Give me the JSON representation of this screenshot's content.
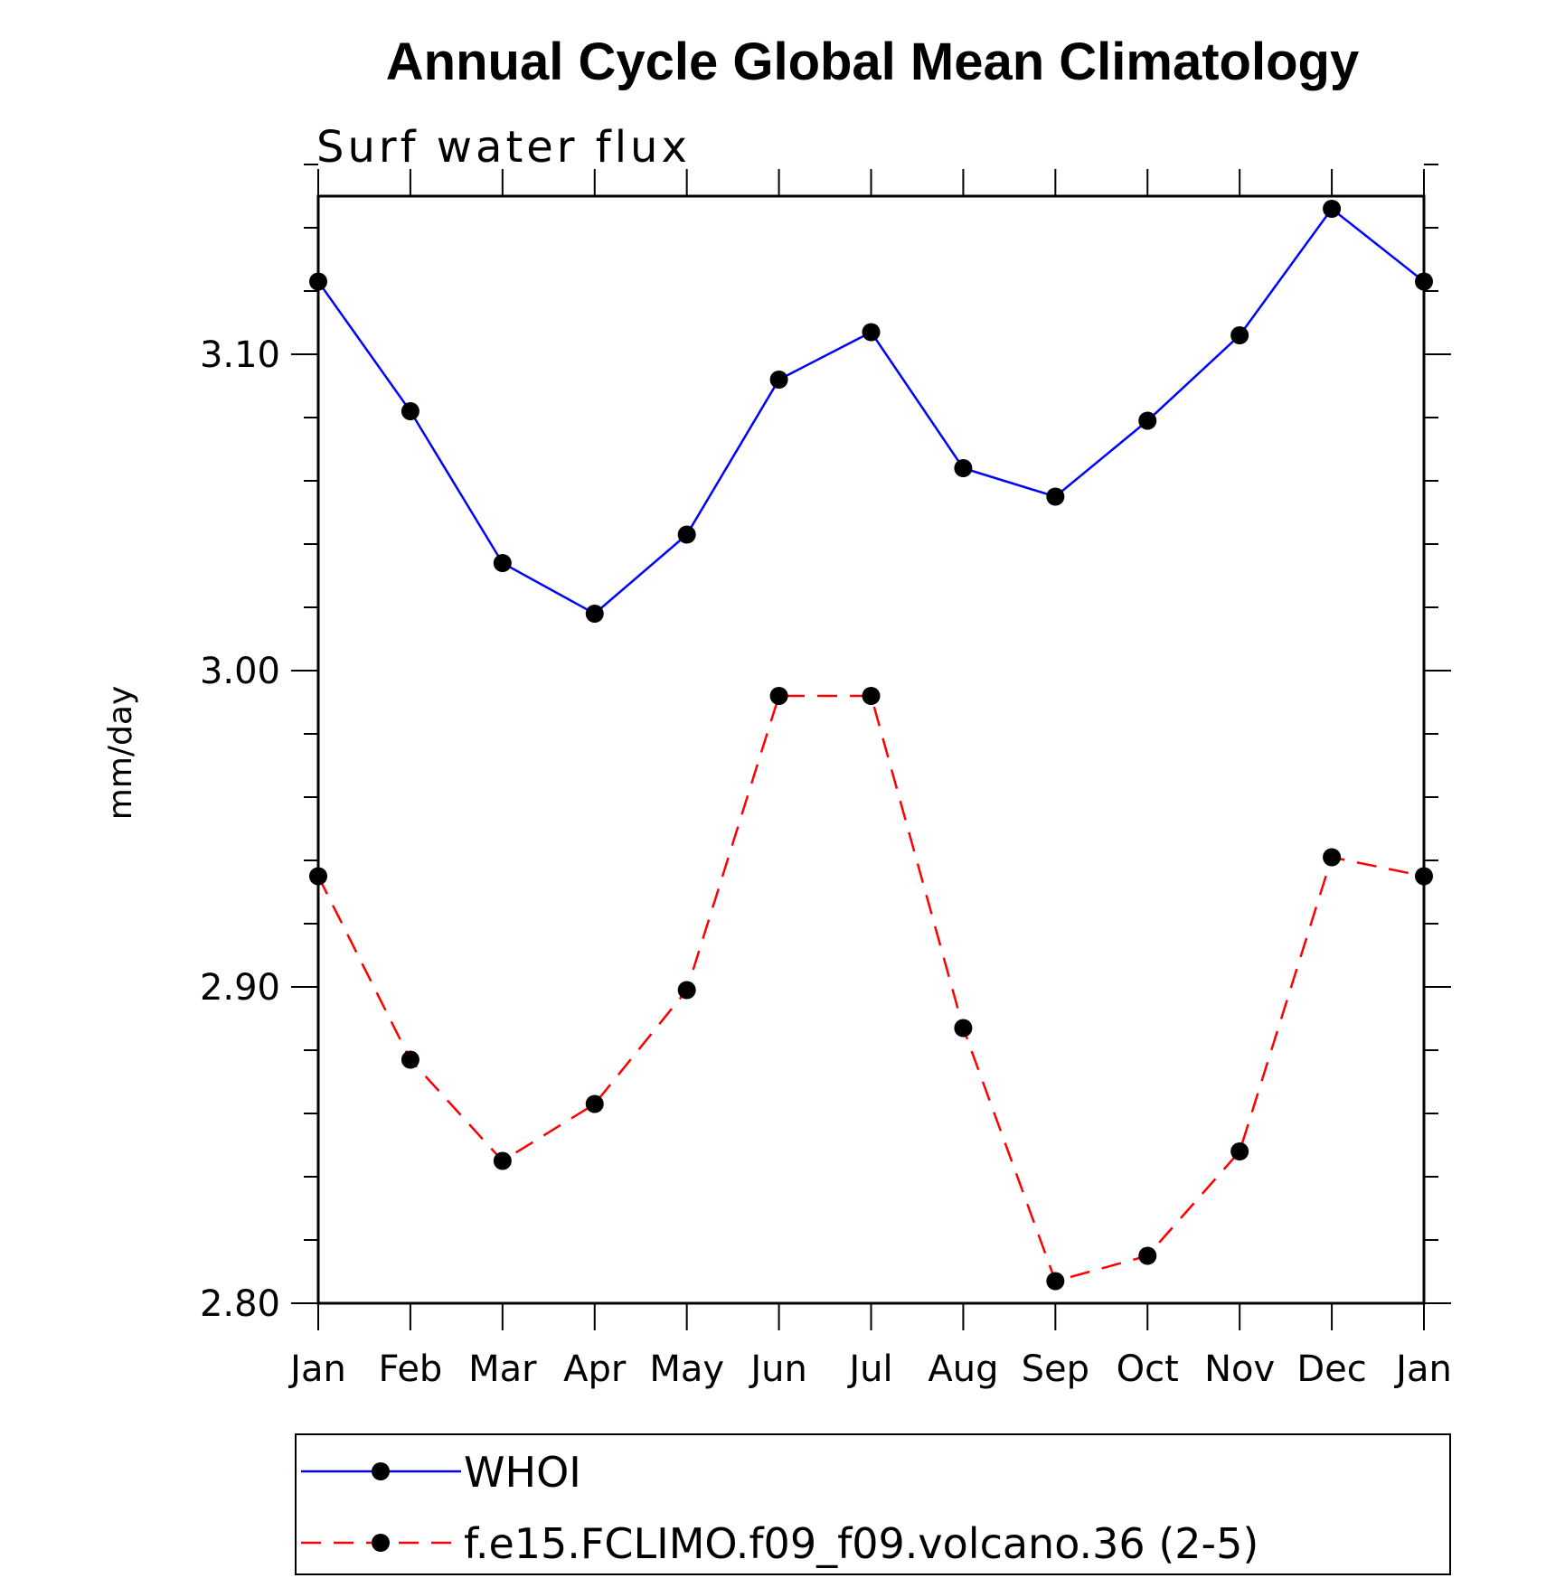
{
  "chart_data": {
    "type": "line",
    "title": "Annual Cycle Global Mean Climatology",
    "subtitle": "Surf water flux",
    "xlabel": "",
    "ylabel": "mm/day",
    "categories": [
      "Jan",
      "Feb",
      "Mar",
      "Apr",
      "May",
      "Jun",
      "Jul",
      "Aug",
      "Sep",
      "Oct",
      "Nov",
      "Dec",
      "Jan"
    ],
    "ylim": [
      2.8,
      3.15
    ],
    "yticks": [
      2.8,
      2.9,
      3.0,
      3.1
    ],
    "ytick_labels": [
      "2.80",
      "2.90",
      "3.00",
      "3.10"
    ],
    "grid": false,
    "legend_position": "bottom",
    "series": [
      {
        "name": "WHOI",
        "color": "#0000ff",
        "line_style": "solid",
        "marker": "filled-circle",
        "values": [
          3.123,
          3.082,
          3.034,
          3.018,
          3.043,
          3.092,
          3.107,
          3.064,
          3.055,
          3.079,
          3.106,
          3.146,
          3.123
        ]
      },
      {
        "name": "f.e15.FCLIMO.f09_f09.volcano.36 (2-5)",
        "color": "#ff0000",
        "line_style": "dashed",
        "marker": "filled-circle",
        "values": [
          2.935,
          2.877,
          2.845,
          2.863,
          2.899,
          2.992,
          2.992,
          2.887,
          2.807,
          2.815,
          2.848,
          2.941,
          2.935
        ]
      }
    ]
  }
}
